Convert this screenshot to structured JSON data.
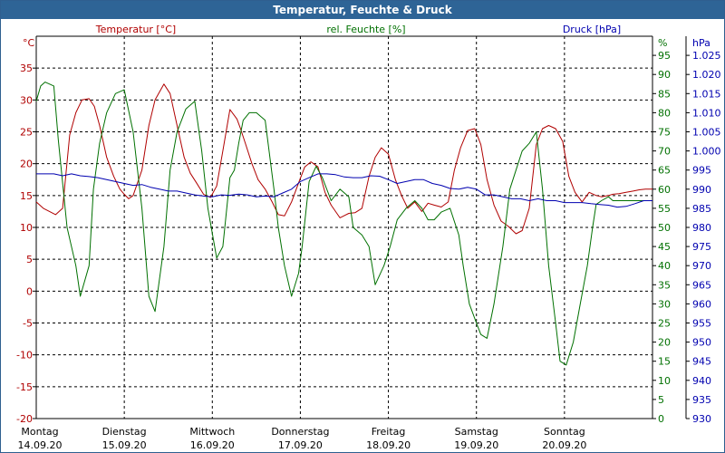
{
  "window": {
    "title": "Temperatur, Feuchte & Druck"
  },
  "chart_data": {
    "type": "line",
    "title": "Temperatur, Feuchte & Druck",
    "colors": {
      "temperature": "#b00000",
      "humidity": "#007000",
      "pressure": "#0000b0",
      "grid": "#000000"
    },
    "axes": {
      "temperature": {
        "label": "Temperatur [°C]",
        "unit": "°C",
        "range": [
          -20,
          40
        ],
        "ticks": [
          "35",
          "30",
          "25",
          "20",
          "15",
          "10",
          "5",
          "0",
          "-5",
          "-10",
          "-15",
          "-20"
        ]
      },
      "humidity": {
        "label": "rel. Feuchte [%]",
        "unit": "%",
        "range": [
          0,
          100
        ],
        "ticks": [
          "95",
          "90",
          "85",
          "80",
          "75",
          "70",
          "65",
          "60",
          "55",
          "50",
          "45",
          "40",
          "35",
          "30",
          "25",
          "20",
          "15",
          "10",
          "5",
          "0"
        ]
      },
      "pressure": {
        "label": "Druck [hPa]",
        "unit": "hPa",
        "range": [
          930,
          1030
        ],
        "ticks": [
          "1.025",
          "1.020",
          "1.015",
          "1.010",
          "1.005",
          "1.000",
          "995",
          "990",
          "985",
          "980",
          "975",
          "970",
          "965",
          "960",
          "955",
          "950",
          "945",
          "940",
          "935",
          "930"
        ]
      }
    },
    "x_range": [
      0,
      7
    ],
    "x_ticks": [
      {
        "day": "Montag",
        "date": "14.09.20"
      },
      {
        "day": "Dienstag",
        "date": "15.09.20"
      },
      {
        "day": "Mittwoch",
        "date": "16.09.20"
      },
      {
        "day": "Donnerstag",
        "date": "17.09.20"
      },
      {
        "day": "Freitag",
        "date": "18.09.20"
      },
      {
        "day": "Samstag",
        "date": "19.09.20"
      },
      {
        "day": "Sonntag",
        "date": "20.09.20"
      }
    ],
    "grid": true,
    "series": [
      {
        "name": "Temperatur [°C]",
        "axis": "temperature",
        "color": "#b00000",
        "x": [
          0,
          0.08,
          0.15,
          0.22,
          0.3,
          0.38,
          0.45,
          0.52,
          0.6,
          0.66,
          0.72,
          0.8,
          0.88,
          0.95,
          1.0,
          1.05,
          1.1,
          1.2,
          1.28,
          1.35,
          1.45,
          1.52,
          1.6,
          1.68,
          1.75,
          1.82,
          1.9,
          1.98,
          2.05,
          2.12,
          2.2,
          2.28,
          2.32,
          2.38,
          2.45,
          2.52,
          2.6,
          2.68,
          2.75,
          2.82,
          2.9,
          2.98,
          3.05,
          3.12,
          3.2,
          3.28,
          3.35,
          3.45,
          3.55,
          3.62,
          3.7,
          3.78,
          3.85,
          3.92,
          4.0,
          4.08,
          4.15,
          4.22,
          4.3,
          4.38,
          4.45,
          4.52,
          4.6,
          4.68,
          4.75,
          4.82,
          4.9,
          4.98,
          5.05,
          5.12,
          5.2,
          5.28,
          5.36,
          5.45,
          5.52,
          5.6,
          5.68,
          5.75,
          5.82,
          5.9,
          5.98,
          6.05,
          6.12,
          6.2,
          6.28,
          6.36,
          6.42,
          6.5,
          6.55,
          6.62,
          6.7,
          6.78,
          6.85,
          6.92,
          7.0
        ],
        "values": [
          14,
          13,
          12.5,
          12,
          13,
          24.5,
          28,
          30,
          30.2,
          29,
          26,
          21,
          18,
          16,
          15.2,
          14.5,
          15,
          19,
          26,
          30,
          32.5,
          31,
          26,
          21,
          18.5,
          17,
          15.2,
          14.7,
          16.5,
          22,
          28.5,
          27,
          25.5,
          23,
          20,
          17.5,
          16,
          14,
          12,
          11.8,
          14,
          17,
          19.5,
          20.3,
          19.5,
          15.5,
          13.5,
          11.5,
          12.2,
          12.3,
          13,
          18,
          21,
          22.5,
          21.5,
          17.5,
          15,
          13,
          14,
          12.5,
          13.8,
          13.5,
          13.2,
          14,
          19,
          22.5,
          25.2,
          25.5,
          23,
          17.5,
          13.5,
          11,
          10.2,
          9,
          9.5,
          13,
          23,
          25.5,
          26,
          25.5,
          23.5,
          18,
          15.5,
          14,
          15.5,
          15,
          14.8,
          15,
          15.2,
          15.3,
          15.5,
          15.7,
          15.9,
          16,
          16
        ]
      },
      {
        "name": "rel. Feuchte [%]",
        "axis": "humidity",
        "color": "#007000",
        "x": [
          0,
          0.05,
          0.1,
          0.2,
          0.25,
          0.35,
          0.45,
          0.5,
          0.6,
          0.65,
          0.72,
          0.8,
          0.9,
          1.0,
          1.1,
          1.2,
          1.28,
          1.35,
          1.45,
          1.52,
          1.6,
          1.65,
          1.7,
          1.8,
          1.88,
          1.95,
          2.05,
          2.12,
          2.2,
          2.25,
          2.3,
          2.35,
          2.42,
          2.5,
          2.6,
          2.7,
          2.75,
          2.82,
          2.9,
          2.98,
          3.02,
          3.1,
          3.18,
          3.25,
          3.35,
          3.45,
          3.55,
          3.6,
          3.7,
          3.78,
          3.85,
          3.95,
          4.02,
          4.1,
          4.2,
          4.3,
          4.38,
          4.45,
          4.52,
          4.6,
          4.7,
          4.8,
          4.85,
          4.92,
          5.0,
          5.05,
          5.12,
          5.2,
          5.3,
          5.38,
          5.45,
          5.52,
          5.6,
          5.68,
          5.75,
          5.82,
          5.9,
          5.95,
          6.02,
          6.1,
          6.18,
          6.26,
          6.32,
          6.36,
          6.42,
          6.5,
          6.55,
          6.62,
          6.7,
          6.78,
          6.85,
          6.92,
          7.0
        ],
        "values": [
          83,
          87,
          88,
          87,
          73,
          50,
          40,
          32,
          40,
          60,
          72,
          80,
          85,
          86,
          75,
          55,
          32,
          28,
          45,
          65,
          75,
          78,
          81,
          83,
          70,
          55,
          42,
          45,
          63,
          65,
          72,
          78,
          80,
          80,
          78,
          60,
          50,
          40,
          32,
          38,
          45,
          62,
          66,
          63,
          57,
          60,
          58,
          50,
          48,
          45,
          35,
          40,
          45,
          52,
          55,
          57,
          55,
          52,
          52,
          54,
          55,
          48,
          40,
          30,
          25,
          22,
          21,
          30,
          45,
          60,
          65,
          70,
          72,
          75,
          60,
          40,
          25,
          15,
          14,
          20,
          30,
          40,
          50,
          56,
          57,
          58,
          57,
          57,
          57,
          57,
          57,
          57,
          57
        ]
      },
      {
        "name": "Druck [hPa]",
        "axis": "pressure",
        "color": "#0000b0",
        "x": [
          0,
          0.1,
          0.2,
          0.3,
          0.4,
          0.5,
          0.6,
          0.7,
          0.8,
          0.9,
          1.0,
          1.1,
          1.2,
          1.3,
          1.4,
          1.5,
          1.6,
          1.7,
          1.8,
          1.9,
          2.0,
          2.1,
          2.2,
          2.3,
          2.4,
          2.5,
          2.6,
          2.7,
          2.8,
          2.9,
          3.0,
          3.1,
          3.2,
          3.3,
          3.4,
          3.5,
          3.6,
          3.7,
          3.8,
          3.9,
          4.0,
          4.1,
          4.2,
          4.3,
          4.4,
          4.5,
          4.6,
          4.7,
          4.8,
          4.9,
          5.0,
          5.1,
          5.2,
          5.3,
          5.4,
          5.5,
          5.6,
          5.7,
          5.8,
          5.9,
          6.0,
          6.1,
          6.2,
          6.3,
          6.4,
          6.5,
          6.6,
          6.7,
          6.8,
          6.9,
          7.0
        ],
        "values": [
          994,
          994,
          994,
          993.5,
          994,
          993.5,
          993.3,
          993,
          992.5,
          992,
          991.5,
          991,
          991.2,
          990.5,
          990,
          989.5,
          989.5,
          989,
          988.5,
          988.2,
          988,
          988.5,
          988.4,
          988.7,
          988.5,
          988,
          988.2,
          988,
          989,
          990,
          992,
          993,
          994,
          994,
          993.8,
          993.2,
          993,
          993,
          993.5,
          993.4,
          992.5,
          991.5,
          992,
          992.5,
          992.5,
          991.5,
          991,
          990.2,
          990,
          990.5,
          990,
          988.5,
          988.5,
          988,
          987.5,
          987.5,
          987,
          987.5,
          987,
          987,
          986.5,
          986.5,
          986.5,
          986.2,
          986,
          985.8,
          985.3,
          985.5,
          986.2,
          987,
          987
        ]
      }
    ]
  }
}
